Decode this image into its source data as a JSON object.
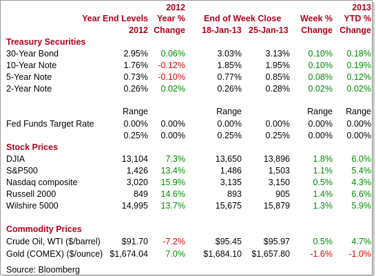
{
  "colors": {
    "header": "#b3001b",
    "positive": "#008a00",
    "negative": "#e00000"
  },
  "header": {
    "line1": [
      "",
      "2012",
      "",
      "",
      "",
      "2013"
    ],
    "line2": [
      "Year End Levels",
      "Year %",
      "End of Week Close",
      "",
      "Week %",
      "YTD %"
    ],
    "line3": [
      "2012",
      "Change",
      "18-Jan-13",
      "25-Jan-13",
      "Change",
      "Change"
    ]
  },
  "sections": {
    "treasury": "Treasury Securities",
    "stock": "Stock Prices",
    "commodity": "Commodity Prices"
  },
  "treasury_rows": [
    {
      "label": "30-Year Bond",
      "ye": "2.95%",
      "yc": "0.06%",
      "c1": "3.03%",
      "c2": "3.13%",
      "wc": "0.10%",
      "ytd": "0.18%"
    },
    {
      "label": "10-Year Note",
      "ye": "1.76%",
      "yc": "-0.12%",
      "c1": "1.85%",
      "c2": "1.95%",
      "wc": "0.10%",
      "ytd": "0.19%"
    },
    {
      "label": "5-Year Note",
      "ye": "0.73%",
      "yc": "-0.10%",
      "c1": "0.77%",
      "c2": "0.85%",
      "wc": "0.08%",
      "ytd": "0.12%"
    },
    {
      "label": "2-Year Note",
      "ye": "0.26%",
      "yc": "0.02%",
      "c1": "0.26%",
      "c2": "0.28%",
      "wc": "0.02%",
      "ytd": "0.02%"
    }
  ],
  "range_label": [
    "Range",
    "Range",
    "Range",
    "Range"
  ],
  "fed_funds": {
    "label": "Fed Funds Target Rate",
    "row1": {
      "ye": "0.00%",
      "yc": "0.00%",
      "c1": "0.00%",
      "c2": "0.00%",
      "wc": "0.00%",
      "ytd": "0.00%"
    },
    "row2": {
      "ye": "0.25%",
      "yc": "0.00%",
      "c1": "0.25%",
      "c2": "0.25%",
      "wc": "0.00%",
      "ytd": "0.00%"
    }
  },
  "stock_rows": [
    {
      "label": "DJIA",
      "ye": "13,104",
      "yc": "7.3%",
      "c1": "13,650",
      "c2": "13,896",
      "wc": "1.8%",
      "ytd": "6.0%"
    },
    {
      "label": "S&P500",
      "ye": "1,426",
      "yc": "13.4%",
      "c1": "1,486",
      "c2": "1,503",
      "wc": "1.1%",
      "ytd": "5.4%"
    },
    {
      "label": "Nasdaq composite",
      "ye": "3,020",
      "yc": "15.9%",
      "c1": "3,135",
      "c2": "3,150",
      "wc": "0.5%",
      "ytd": "4.3%"
    },
    {
      "label": "Russell 2000",
      "ye": "849",
      "yc": "14.6%",
      "c1": "893",
      "c2": "905",
      "wc": "1.4%",
      "ytd": "6.6%"
    },
    {
      "label": "Wilshire 5000",
      "ye": "14,995",
      "yc": "13.7%",
      "c1": "15,675",
      "c2": "15,879",
      "wc": "1.3%",
      "ytd": "5.9%"
    }
  ],
  "commodity_rows": [
    {
      "label": "Crude Oil, WTI ($/barrel)",
      "ye": "$91.70",
      "yc": "-7.2%",
      "c1": "$95.45",
      "c2": "$95.97",
      "wc": "0.5%",
      "ytd": "4.7%"
    },
    {
      "label": "Gold (COMEX) ($/ounce)",
      "ye": "$1,674.04",
      "yc": "7.0%",
      "c1": "$1,684.10",
      "c2": "$1,657.80",
      "wc": "-1.6%",
      "ytd": "-1.0%"
    }
  ],
  "source": "Source: Bloomberg"
}
